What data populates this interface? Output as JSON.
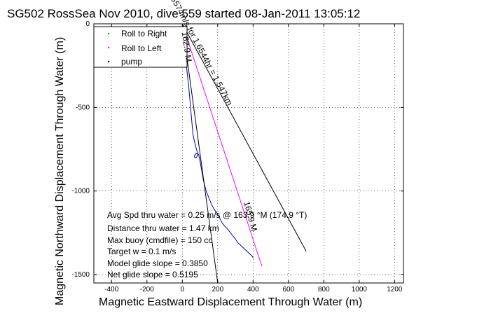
{
  "chart_data": {
    "type": "line",
    "title": "SG502 RossSea Nov 2010, dive 559 started 08-Jan-2011 13:05:12",
    "xlabel": "Magnetic Eastward Displacement Through Water (m)",
    "ylabel": "Magnetic Northward Displacement Through Water (m)",
    "xlim": [
      -500,
      1250
    ],
    "ylim": [
      -1550,
      0
    ],
    "x_ticks": [
      -400,
      -200,
      0,
      200,
      400,
      600,
      800,
      1000,
      1200
    ],
    "y_ticks": [
      0,
      -500,
      -1000,
      -1500
    ],
    "x_tick_labels": [
      "-400",
      "-200",
      "0",
      "200",
      "400",
      "600",
      "800",
      "1000",
      "1200"
    ],
    "y_tick_labels": [
      "0",
      "-500",
      "-1000",
      "-1500"
    ],
    "grid": true,
    "legend": {
      "position": "top-left",
      "entries": [
        {
          "label": "Roll to Right",
          "color": "#00a000",
          "marker": "dot"
        },
        {
          "label": "Roll to Left",
          "color": "#ff00ff",
          "marker": "dot"
        },
        {
          "label": "pump",
          "color": "#000000",
          "marker": "dot"
        }
      ]
    },
    "series": [
      {
        "color": "#0000cc",
        "x": [
          0,
          5,
          12,
          18,
          22,
          28,
          35,
          40,
          45,
          50,
          55,
          60,
          72,
          88,
          80,
          70,
          68,
          78,
          92,
          100,
          110,
          120,
          135,
          150,
          165,
          180,
          195,
          205,
          215,
          225,
          232,
          240,
          250,
          265,
          280,
          295,
          305,
          315,
          325,
          335,
          345,
          355,
          365,
          375,
          385,
          395,
          400
        ],
        "y": [
          0,
          -60,
          -120,
          -180,
          -240,
          -300,
          -360,
          -420,
          -480,
          -540,
          -600,
          -660,
          -720,
          -780,
          -800,
          -800,
          -790,
          -775,
          -780,
          -820,
          -880,
          -940,
          -1000,
          -1040,
          -1080,
          -1110,
          -1130,
          -1150,
          -1170,
          -1190,
          -1200,
          -1210,
          -1220,
          -1240,
          -1260,
          -1280,
          -1295,
          -1310,
          -1320,
          -1330,
          -1340,
          -1350,
          -1360,
          -1370,
          -1380,
          -1390,
          -1400
        ]
      },
      {
        "color": "#ff00ff",
        "x": [
          0,
          450
        ],
        "y": [
          0,
          -1450
        ]
      },
      {
        "color": "#000000",
        "x": [
          0,
          700
        ],
        "y": [
          0,
          -1360
        ]
      },
      {
        "color": "#000000",
        "x": [
          0,
          200
        ],
        "y": [
          0,
          -1550
        ]
      }
    ],
    "annotations": [
      {
        "text": "0.25574m/s for 1.6544hr = 1.547km",
        "x": 80,
        "y": -140,
        "angle_deg": 62
      },
      {
        "text": "162.9 M",
        "x": 10,
        "y": -140,
        "angle_deg": 82
      },
      {
        "text": "165.9 M",
        "x": 370,
        "y": -1155,
        "angle_deg": 75
      }
    ],
    "stats": [
      "Avg Spd thru water = 0.25 m/s @ 163.9   °M (174.9 °T)",
      "Distance thru water = 1.47 km",
      "Max buoy (cmdfile) = 150 cc",
      "Target w = 0.1 m/s",
      "Model glide slope = 0.3850",
      "Net glide slope = 0.5195"
    ]
  }
}
